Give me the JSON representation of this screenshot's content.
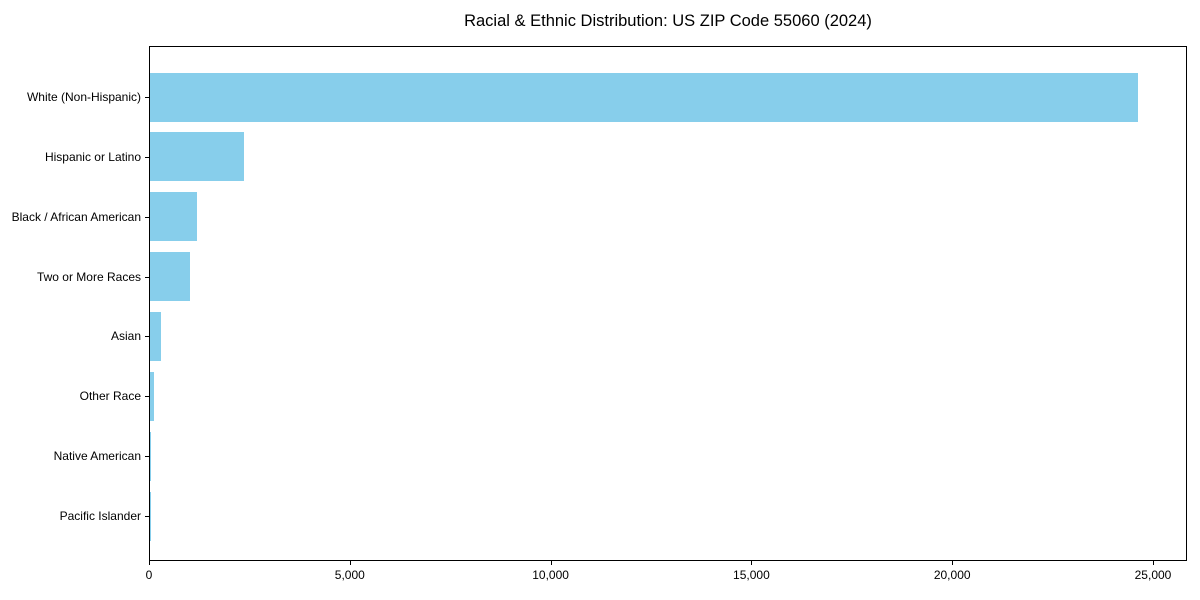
{
  "chart_data": {
    "type": "bar",
    "orientation": "horizontal",
    "title": "Racial & Ethnic Distribution: US ZIP Code 55060 (2024)",
    "categories": [
      "White (Non-Hispanic)",
      "Hispanic or Latino",
      "Black / African American",
      "Two or More Races",
      "Asian",
      "Other Race",
      "Native American",
      "Pacific Islander"
    ],
    "values": [
      24600,
      2350,
      1170,
      1000,
      270,
      95,
      35,
      5
    ],
    "xlabel": "",
    "ylabel": "",
    "xlim": [
      0,
      25847
    ],
    "xticks": [
      0,
      5000,
      10000,
      15000,
      20000,
      25000
    ],
    "xtick_labels": [
      "0",
      "5,000",
      "10,000",
      "15,000",
      "20,000",
      "25,000"
    ],
    "bar_color": "#87CEEB",
    "spine_color": "#000000",
    "background": "#ffffff",
    "grid": false,
    "legend": null
  }
}
